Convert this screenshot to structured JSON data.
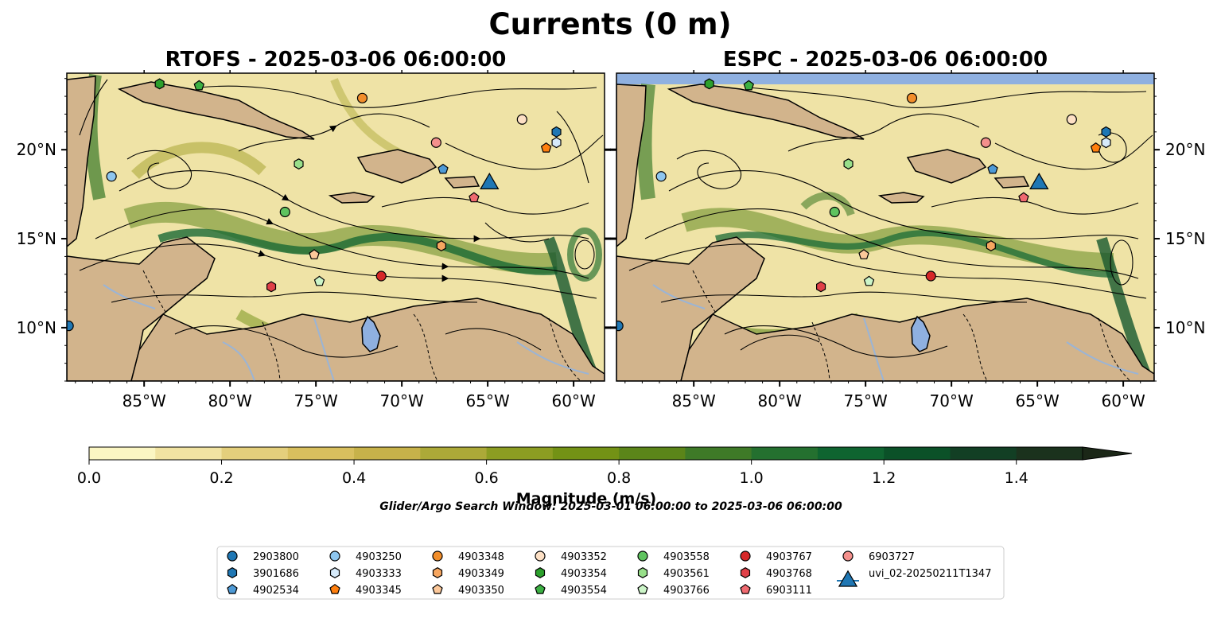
{
  "figure": {
    "title": "Currents (0 m)",
    "search_window": "Glider/Argo Search Window: 2025-03-01 06:00:00 to 2025-03-06 06:00:00"
  },
  "chart_data": {
    "type": "heatmap",
    "panels": [
      {
        "title": "RTOFS - 2025-03-06 06:00:00"
      },
      {
        "title": "ESPC - 2025-03-06 06:00:00"
      }
    ],
    "lon_range": [
      -89.5,
      -58.2
    ],
    "lat_range": [
      7.0,
      24.3
    ],
    "x_ticks": [
      {
        "value": -85,
        "label": "85°W"
      },
      {
        "value": -80,
        "label": "80°W"
      },
      {
        "value": -75,
        "label": "75°W"
      },
      {
        "value": -70,
        "label": "70°W"
      },
      {
        "value": -65,
        "label": "65°W"
      },
      {
        "value": -60,
        "label": "60°W"
      }
    ],
    "y_ticks": [
      {
        "value": 20,
        "label": "20°N"
      },
      {
        "value": 15,
        "label": "15°N"
      },
      {
        "value": 10,
        "label": "10°N"
      }
    ],
    "colorbar": {
      "label": "Magnitude (m/s)",
      "range": [
        0,
        1.5
      ],
      "extend": "max",
      "ticks": [
        {
          "value": 0.0,
          "label": "0.0"
        },
        {
          "value": 0.2,
          "label": "0.2"
        },
        {
          "value": 0.4,
          "label": "0.4"
        },
        {
          "value": 0.6,
          "label": "0.6"
        },
        {
          "value": 0.8,
          "label": "0.8"
        },
        {
          "value": 1.0,
          "label": "1.0"
        },
        {
          "value": 1.2,
          "label": "1.2"
        },
        {
          "value": 1.4,
          "label": "1.4"
        }
      ],
      "colors": [
        "#fbf6c3",
        "#f1e3a2",
        "#e4cf7c",
        "#d8bf5e",
        "#c7b24a",
        "#aca938",
        "#8c9d22",
        "#739215",
        "#5b8519",
        "#3e7a27",
        "#24702f",
        "#0f6430",
        "#0b5128",
        "#123f24",
        "#1b321d",
        "#1b2717"
      ]
    },
    "land_color": "#d2b48c",
    "water_body_color": "#8fb0e0",
    "platforms": [
      {
        "id": "2903800",
        "marker": "circle",
        "color": "#1f77b4",
        "lon": -89.4,
        "lat": 10.1
      },
      {
        "id": "3901686",
        "marker": "hexagon",
        "color": "#1f77b4",
        "lon": -61.0,
        "lat": 21.0
      },
      {
        "id": "4902534",
        "marker": "pentagon",
        "color": "#4e9ad6",
        "lon": -67.6,
        "lat": 18.9
      },
      {
        "id": "4903250",
        "marker": "circle",
        "color": "#8ec6ef",
        "lon": -86.9,
        "lat": 18.5
      },
      {
        "id": "4903333",
        "marker": "hexagon",
        "color": "#d6eafa",
        "lon": -61.0,
        "lat": 20.4
      },
      {
        "id": "4903345",
        "marker": "pentagon",
        "color": "#ff7f0e",
        "lon": -61.6,
        "lat": 20.1
      },
      {
        "id": "4903348",
        "marker": "circle",
        "color": "#f28e2b",
        "lon": -72.3,
        "lat": 22.9
      },
      {
        "id": "4903349",
        "marker": "hexagon",
        "color": "#f6a660",
        "lon": -67.7,
        "lat": 14.6
      },
      {
        "id": "4903350",
        "marker": "pentagon",
        "color": "#fcc89a",
        "lon": -75.1,
        "lat": 14.1
      },
      {
        "id": "4903352",
        "marker": "circle",
        "color": "#fde0c5",
        "lon": -63.0,
        "lat": 21.7
      },
      {
        "id": "4903354",
        "marker": "hexagon",
        "color": "#2ca02c",
        "lon": -84.1,
        "lat": 23.7
      },
      {
        "id": "4903554",
        "marker": "pentagon",
        "color": "#3cb043",
        "lon": -81.8,
        "lat": 23.6
      },
      {
        "id": "4903558",
        "marker": "circle",
        "color": "#5fc35f",
        "lon": -76.8,
        "lat": 16.5
      },
      {
        "id": "4903561",
        "marker": "hexagon",
        "color": "#98df8a",
        "lon": -76.0,
        "lat": 19.2
      },
      {
        "id": "4903766",
        "marker": "pentagon",
        "color": "#ccf5c8",
        "lon": -74.8,
        "lat": 12.6
      },
      {
        "id": "4903767",
        "marker": "circle",
        "color": "#d62728",
        "lon": -71.2,
        "lat": 12.9
      },
      {
        "id": "4903768",
        "marker": "hexagon",
        "color": "#e04048",
        "lon": -77.6,
        "lat": 12.3
      },
      {
        "id": "6903111",
        "marker": "pentagon",
        "color": "#f06a70",
        "lon": -65.8,
        "lat": 17.3
      },
      {
        "id": "6903727",
        "marker": "circle",
        "color": "#f4908c",
        "lon": -68.0,
        "lat": 20.4
      },
      {
        "id": "uvi_02-20250211T1347",
        "marker": "triangle",
        "color": "#1f77b4",
        "lon": -64.9,
        "lat": 18.2
      }
    ]
  }
}
